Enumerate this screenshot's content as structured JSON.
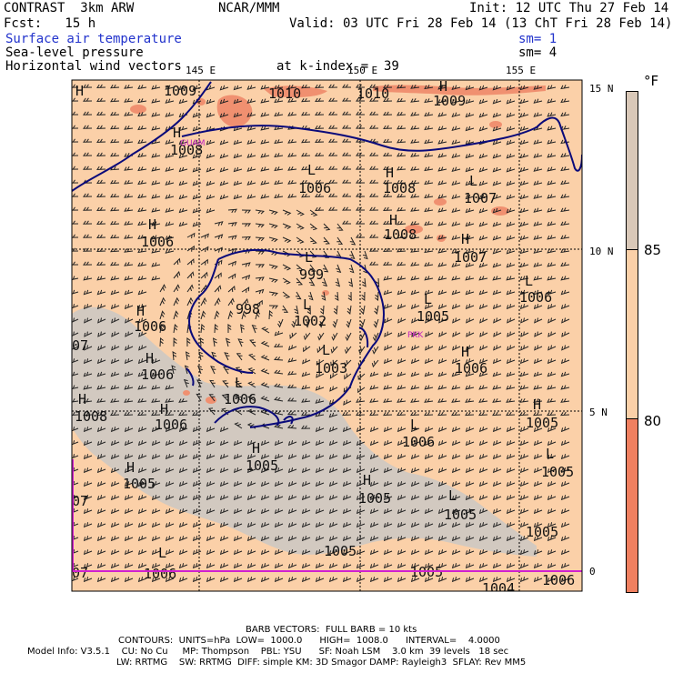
{
  "header": {
    "line1_left": "CONTRAST  3km ARW",
    "line1_center": "NCAR/MMM",
    "line1_right": "Init: 12 UTC Thu 27 Feb 14",
    "line2_left": "Fcst:   15 h",
    "line2_right": "Valid: 03 UTC Fri 28 Feb 14 (13 ChT Fri 28 Feb 14)",
    "field1": "Surface air temperature",
    "field1_sm": "sm= 1",
    "field2": "Sea-level pressure",
    "field2_sm": "sm= 4",
    "field3": "Horizontal wind vectors",
    "level": "at k-index =  39"
  },
  "axes": {
    "lon_labels": [
      "145 E",
      "150 E",
      "155 E"
    ],
    "lat_labels": [
      "15 N",
      "10 N",
      "5 N",
      "0"
    ]
  },
  "legend": {
    "unit": "°F",
    "values": [
      "85",
      "80"
    ],
    "colors": {
      "high": "#d9c8b8",
      "mid": "#fbd0a8",
      "low": "#f08060"
    }
  },
  "map_labels": {
    "highs": [
      "H",
      "H",
      "H",
      "H",
      "H",
      "H",
      "H",
      "H",
      "H",
      "H",
      "H",
      "H",
      "H",
      "H",
      "H",
      "H"
    ],
    "lows": [
      "L",
      "L",
      "L",
      "L",
      "L",
      "L",
      "L",
      "L",
      "L",
      "L",
      "L",
      "L"
    ],
    "pressures": [
      "1009",
      "1010",
      "1010",
      "1009",
      "1008",
      "1006",
      "1008",
      "1007",
      "1006",
      "1008",
      "1007",
      "999",
      "998",
      "1002",
      "1006",
      "1005",
      "1006",
      "1006",
      "1003",
      "1006",
      "1006",
      "1008",
      "1006",
      "1005",
      "1006",
      "1005",
      "1005",
      "1005",
      "1005",
      "1005",
      "1005",
      "1005",
      "1005",
      "1004",
      "1006",
      "1006",
      "07",
      "07",
      "07"
    ],
    "stations": [
      "GUAM",
      "PKK"
    ]
  },
  "footer": {
    "barb": "BARB VECTORS:  FULL BARB = 10 kts",
    "contours": "CONTOURS:  UNITS=hPa  LOW=  1000.0      HIGH=  1008.0      INTERVAL=    4.0000",
    "model1": "Model Info: V3.5.1    CU: No Cu     MP: Thompson    PBL: YSU      SF: Noah LSM    3.0 km  39 levels   18 sec",
    "model2": "LW: RRTMG    SW: RRTMG  DIFF: simple KM: 3D Smagor DAMP: Rayleigh3  SFLAY: Rev MM5"
  }
}
